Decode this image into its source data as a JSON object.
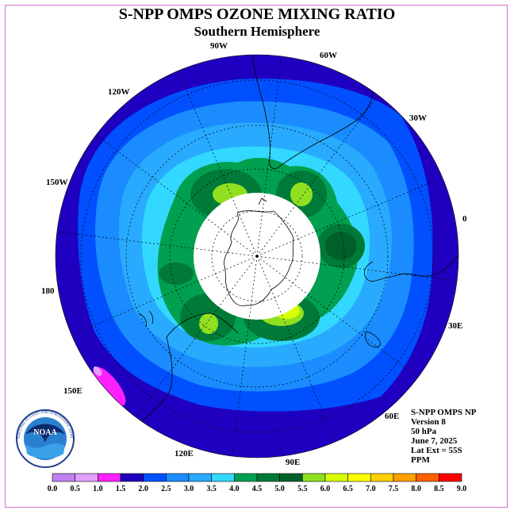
{
  "title": "S-NPP OMPS OZONE MIXING RATIO",
  "subtitle": "Southern Hemisphere",
  "logo": {
    "text": "NOAA",
    "ring_text": "NATIONAL OCEANIC AND ATMOSPHERIC ADMINISTRATION · U.S. DEPARTMENT OF COMMERCE"
  },
  "longitude_labels": [
    "90W",
    "60W",
    "30W",
    "0",
    "30E",
    "60E",
    "90E",
    "120E",
    "150E",
    "180",
    "150W",
    "120W"
  ],
  "info": {
    "instrument": "S-NPP OMPS NP",
    "version": "Version 8",
    "level": "50 hPa",
    "date": "June 7, 2025",
    "lat_ext": "Lat Ext = 55S",
    "units": "PPM"
  },
  "colorbar": {
    "ticks": [
      "0.0",
      "0.5",
      "1.0",
      "1.5",
      "2.0",
      "2.5",
      "3.0",
      "3.5",
      "4.0",
      "4.5",
      "5.0",
      "5.5",
      "6.0",
      "6.5",
      "7.0",
      "7.5",
      "8.0",
      "8.5",
      "9.0"
    ],
    "colors": [
      "#c080f0",
      "#e0a0ff",
      "#ff20ff",
      "#2000c0",
      "#0050ff",
      "#1a8cff",
      "#28aaff",
      "#32d8ff",
      "#00a050",
      "#007a38",
      "#00602a",
      "#90e020",
      "#d8ff00",
      "#ffff00",
      "#ffd000",
      "#ffa000",
      "#ff6000",
      "#ff0000",
      "#8b5a3c"
    ]
  },
  "chart_data": {
    "type": "heatmap",
    "title": "S-NPP OMPS OZONE MIXING RATIO",
    "subtitle": "Southern Hemisphere",
    "projection": "south polar stereographic",
    "units": "PPM",
    "pressure_level": "50 hPa",
    "date": "June 7, 2025",
    "lat_extent": "55S",
    "value_range": [
      0.0,
      9.0
    ],
    "contour_interval": 0.5,
    "no_data_region": "polar night cap",
    "regions": [
      {
        "location": "outer ring",
        "value": 1.5
      },
      {
        "location": "mid latitudes",
        "value": 2.5
      },
      {
        "location": "inner ring",
        "value": 3.5
      },
      {
        "location": "ring around polar cap",
        "value": 4.5
      },
      {
        "location": "peaks near 90W, 60W, 60E and 120E",
        "value": 6.0
      }
    ]
  }
}
